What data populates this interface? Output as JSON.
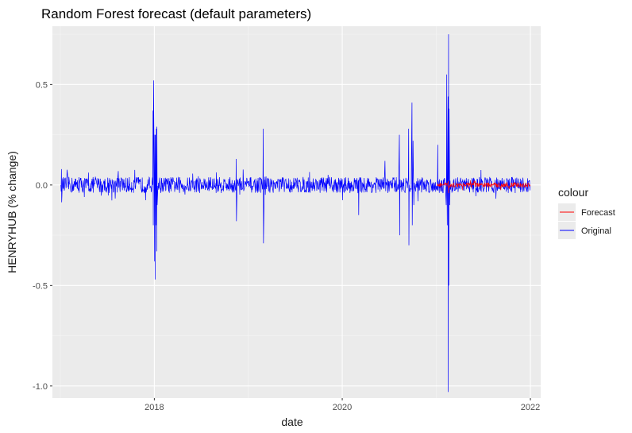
{
  "chart_data": {
    "type": "line",
    "title": "Random Forest forecast (default parameters)",
    "xlabel": "date",
    "ylabel": "HENRYHUB (% change)",
    "xlim": [
      "2016-12-01",
      "2022-02-10"
    ],
    "ylim": [
      -1.06,
      0.79
    ],
    "x_ticks": [
      {
        "label": "2018",
        "value": "2018-01-01"
      },
      {
        "label": "2020",
        "value": "2020-01-01"
      },
      {
        "label": "2022",
        "value": "2022-01-01"
      }
    ],
    "y_ticks": [
      {
        "label": "0.5",
        "value": 0.5
      },
      {
        "label": "0.0",
        "value": 0.0
      },
      {
        "label": "-0.5",
        "value": -0.5
      },
      {
        "label": "-1.0",
        "value": -1.0
      }
    ],
    "grid": true,
    "legend": {
      "title": "colour",
      "position": "right"
    },
    "series": [
      {
        "name": "Original",
        "color": "#0000FF",
        "x_range": [
          "2017-01-03",
          "2021-12-31"
        ],
        "typical_amplitude": 0.04,
        "points": [
          {
            "date": "2017-01-03",
            "value": 0.0
          },
          {
            "date": "2017-12-26",
            "value": 0.0
          },
          {
            "date": "2017-12-27",
            "value": 0.37
          },
          {
            "date": "2017-12-28",
            "value": -0.2
          },
          {
            "date": "2017-12-29",
            "value": 0.52
          },
          {
            "date": "2018-01-02",
            "value": -0.38
          },
          {
            "date": "2018-01-03",
            "value": 0.25
          },
          {
            "date": "2018-01-04",
            "value": -0.47
          },
          {
            "date": "2018-01-05",
            "value": 0.25
          },
          {
            "date": "2018-01-08",
            "value": -0.2
          },
          {
            "date": "2018-01-09",
            "value": 0.28
          },
          {
            "date": "2018-01-10",
            "value": -0.33
          },
          {
            "date": "2018-01-11",
            "value": 0.29
          },
          {
            "date": "2018-01-12",
            "value": -0.1
          },
          {
            "date": "2018-11-15",
            "value": 0.13
          },
          {
            "date": "2018-11-16",
            "value": -0.18
          },
          {
            "date": "2019-02-28",
            "value": 0.28
          },
          {
            "date": "2019-03-01",
            "value": -0.29
          },
          {
            "date": "2020-03-05",
            "value": -0.15
          },
          {
            "date": "2020-06-15",
            "value": 0.12
          },
          {
            "date": "2020-08-10",
            "value": 0.25
          },
          {
            "date": "2020-08-11",
            "value": -0.25
          },
          {
            "date": "2020-09-15",
            "value": 0.28
          },
          {
            "date": "2020-09-16",
            "value": -0.3
          },
          {
            "date": "2020-09-28",
            "value": 0.41
          },
          {
            "date": "2020-09-29",
            "value": -0.2
          },
          {
            "date": "2020-10-02",
            "value": 0.22
          },
          {
            "date": "2020-10-05",
            "value": -0.1
          },
          {
            "date": "2021-01-06",
            "value": 0.2
          },
          {
            "date": "2021-02-08",
            "value": -0.1
          },
          {
            "date": "2021-02-10",
            "value": 0.55
          },
          {
            "date": "2021-02-12",
            "value": -0.2
          },
          {
            "date": "2021-02-15",
            "value": 0.44
          },
          {
            "date": "2021-02-16",
            "value": -1.03
          },
          {
            "date": "2021-02-17",
            "value": 0.75
          },
          {
            "date": "2021-02-18",
            "value": -0.5
          },
          {
            "date": "2021-02-19",
            "value": 0.38
          },
          {
            "date": "2021-02-22",
            "value": -0.1
          },
          {
            "date": "2021-12-31",
            "value": 0.0
          }
        ]
      },
      {
        "name": "Forecast",
        "color": "#FF0000",
        "x_range": [
          "2021-01-04",
          "2021-12-31"
        ],
        "typical_amplitude": 0.012,
        "points": [
          {
            "date": "2021-01-04",
            "value": 0.0
          },
          {
            "date": "2021-02-16",
            "value": 0.02
          },
          {
            "date": "2021-02-17",
            "value": -0.04
          },
          {
            "date": "2021-06-15",
            "value": 0.01
          },
          {
            "date": "2021-10-01",
            "value": 0.015
          },
          {
            "date": "2021-12-31",
            "value": 0.0
          }
        ]
      }
    ]
  }
}
